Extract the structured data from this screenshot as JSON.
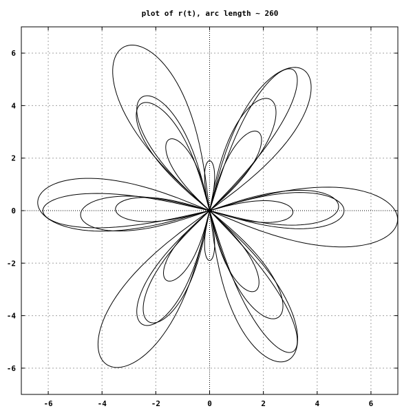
{
  "chart_data": {
    "type": "line",
    "title": "plot of r(t), arc length ~ 260",
    "xlabel": "",
    "ylabel": "",
    "xlim": [
      -7,
      7
    ],
    "ylim": [
      -7,
      7
    ],
    "x_ticks": [
      -6,
      -4,
      -2,
      0,
      2,
      4,
      6
    ],
    "y_ticks": [
      -6,
      -4,
      -2,
      0,
      2,
      4,
      6
    ],
    "grid": true,
    "zero_axes": true,
    "series": [
      {
        "kind": "polar-rose",
        "petals_deg": [
          0,
          60,
          120,
          180,
          240,
          300
        ],
        "petal_lengths": [
          7.0,
          6.4,
          7.0,
          6.4,
          7.0,
          6.4
        ],
        "petal_half_widths": [
          1.25,
          1.1,
          1.25,
          1.1,
          1.25,
          1.1
        ],
        "rotation_deg": -3
      },
      {
        "kind": "polar-rose",
        "petals_deg": [
          0,
          60,
          120,
          180,
          240,
          300
        ],
        "petal_lengths": [
          5.0,
          6.2,
          5.0,
          6.2,
          5.0,
          6.2
        ],
        "petal_half_widths": [
          0.75,
          0.7,
          0.75,
          0.7,
          0.75,
          0.7
        ],
        "rotation_deg": 0
      },
      {
        "kind": "polar-rose",
        "petals_deg": [
          0,
          60,
          120,
          180,
          240,
          300
        ],
        "petal_lengths": [
          4.8,
          4.8,
          4.8,
          4.8,
          4.8,
          4.8
        ],
        "petal_half_widths": [
          0.72,
          0.72,
          0.72,
          0.72,
          0.72,
          0.72
        ],
        "rotation_deg": 2
      },
      {
        "kind": "polar-rose",
        "petals_deg": [
          0,
          60,
          120,
          180,
          240,
          300
        ],
        "petal_lengths": [
          3.1,
          3.5,
          3.1,
          3.5,
          3.1,
          3.5
        ],
        "petal_half_widths": [
          0.45,
          0.5,
          0.45,
          0.5,
          0.45,
          0.5
        ],
        "rotation_deg": -1
      },
      {
        "kind": "polar-rose",
        "petals_deg": [
          90,
          270
        ],
        "petal_lengths": [
          1.9,
          1.9
        ],
        "petal_half_widths": [
          0.2,
          0.2
        ],
        "rotation_deg": 0
      }
    ]
  }
}
